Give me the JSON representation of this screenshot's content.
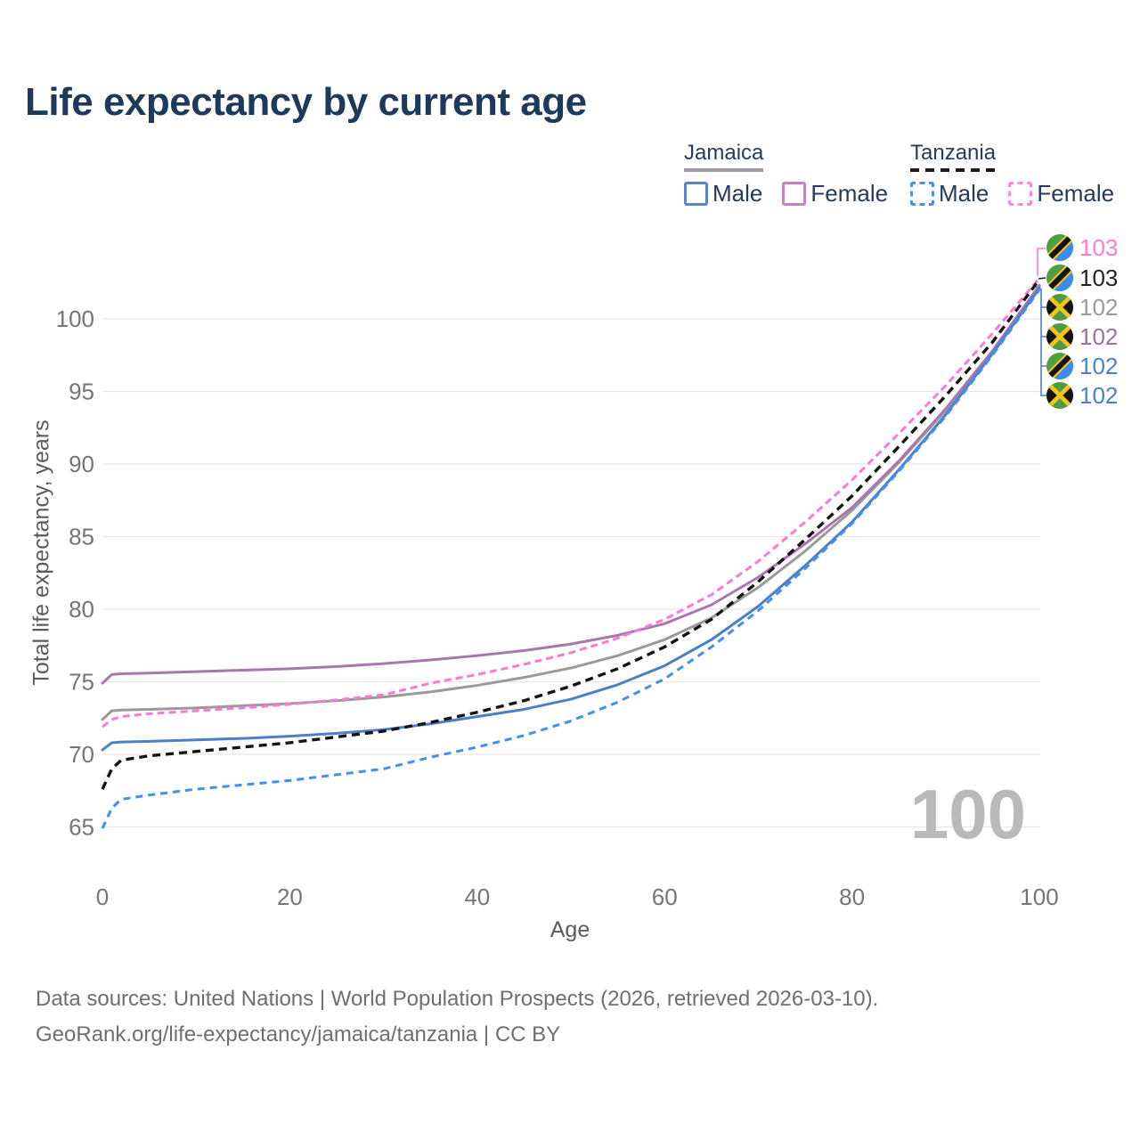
{
  "title": "Life expectancy by current age",
  "watermark": "100",
  "legend": {
    "groups": [
      {
        "country": "Jamaica",
        "line_color": "#9a9a9a",
        "line_dash": false,
        "items": [
          {
            "label": "Male",
            "color": "#5b84c5",
            "dash": false
          },
          {
            "label": "Female",
            "color": "#c383c1",
            "dash": false
          }
        ]
      },
      {
        "country": "Tanzania",
        "line_color": "#1a1a1a",
        "line_dash": true,
        "items": [
          {
            "label": "Male",
            "color": "#4b8df0",
            "dash": true
          },
          {
            "label": "Female",
            "color": "#ff86d9",
            "dash": true
          }
        ]
      }
    ]
  },
  "end_labels": [
    {
      "value": "103",
      "country": "Tanzania",
      "series": "Tanzania Female",
      "color": "#ff7bd1"
    },
    {
      "value": "103",
      "country": "Tanzania",
      "series": "Tanzania",
      "color": "#222222"
    },
    {
      "value": "102",
      "country": "Jamaica",
      "series": "Jamaica",
      "color": "#9a9a9a"
    },
    {
      "value": "102",
      "country": "Jamaica",
      "series": "Jamaica Female",
      "color": "#a06fa5"
    },
    {
      "value": "102",
      "country": "Tanzania",
      "series": "Tanzania Male",
      "color": "#4a7fd1"
    },
    {
      "value": "102",
      "country": "Jamaica",
      "series": "Jamaica Male",
      "color": "#4a7fd1"
    }
  ],
  "axes": {
    "x_label": "Age",
    "y_label": "Total life expectancy, years"
  },
  "chart_data": {
    "type": "line",
    "title": "Life expectancy by current age",
    "xlabel": "Age",
    "ylabel": "Total life expectancy, years",
    "xlim": [
      0,
      100
    ],
    "ylim": [
      63,
      104
    ],
    "grid": "horizontal",
    "legend_position": "top-right",
    "xticks": [
      0,
      20,
      40,
      60,
      80,
      100
    ],
    "yticks": [
      65,
      70,
      75,
      80,
      85,
      90,
      95,
      100
    ],
    "x": [
      0,
      1,
      2,
      5,
      10,
      15,
      20,
      25,
      30,
      35,
      40,
      45,
      50,
      55,
      60,
      65,
      70,
      75,
      80,
      85,
      90,
      95,
      100
    ],
    "series": [
      {
        "name": "Jamaica",
        "country": "Jamaica",
        "sex": "both",
        "color": "#9a9a9a",
        "dash": null,
        "width": 3,
        "values": [
          72.4,
          73.0,
          73.05,
          73.1,
          73.2,
          73.35,
          73.5,
          73.7,
          73.95,
          74.3,
          74.75,
          75.3,
          75.95,
          76.8,
          77.9,
          79.4,
          81.5,
          84.0,
          86.8,
          90.1,
          93.7,
          97.7,
          102.2
        ]
      },
      {
        "name": "Jamaica Female",
        "country": "Jamaica",
        "sex": "female",
        "color": "#a877ab",
        "dash": null,
        "width": 3,
        "values": [
          74.9,
          75.5,
          75.55,
          75.6,
          75.7,
          75.8,
          75.9,
          76.05,
          76.25,
          76.5,
          76.8,
          77.15,
          77.6,
          78.2,
          79.0,
          80.3,
          82.2,
          84.5,
          87.0,
          90.2,
          93.8,
          97.8,
          102.3
        ]
      },
      {
        "name": "Jamaica Male",
        "country": "Jamaica",
        "sex": "male",
        "color": "#4a80c8",
        "dash": null,
        "width": 3,
        "values": [
          70.3,
          70.8,
          70.85,
          70.9,
          71.0,
          71.1,
          71.25,
          71.45,
          71.7,
          72.1,
          72.6,
          73.1,
          73.8,
          74.8,
          76.1,
          77.9,
          80.2,
          83.0,
          86.0,
          89.6,
          93.4,
          97.6,
          102.1
        ]
      },
      {
        "name": "Tanzania Female",
        "country": "Tanzania",
        "sex": "female",
        "color": "#ff78d2",
        "dash": [
          8,
          5
        ],
        "width": 3,
        "values": [
          71.9,
          72.4,
          72.6,
          72.8,
          73.0,
          73.2,
          73.45,
          73.75,
          74.1,
          74.9,
          75.5,
          76.2,
          77.0,
          78.0,
          79.3,
          81.0,
          83.3,
          86.0,
          88.9,
          92.1,
          95.4,
          99.0,
          102.8
        ]
      },
      {
        "name": "Tanzania",
        "country": "Tanzania",
        "sex": "both",
        "color": "#141414",
        "dash": [
          9,
          6
        ],
        "width": 3.4,
        "values": [
          67.6,
          69.0,
          69.6,
          69.9,
          70.2,
          70.5,
          70.8,
          71.2,
          71.6,
          72.2,
          72.9,
          73.7,
          74.7,
          75.9,
          77.4,
          79.3,
          81.9,
          84.8,
          87.8,
          91.2,
          94.7,
          98.4,
          102.7
        ]
      },
      {
        "name": "Tanzania Male",
        "country": "Tanzania",
        "sex": "male",
        "color": "#4090f0",
        "dash": [
          8,
          6
        ],
        "width": 3,
        "values": [
          64.9,
          66.3,
          66.9,
          67.2,
          67.6,
          67.9,
          68.2,
          68.6,
          69.0,
          69.8,
          70.5,
          71.3,
          72.3,
          73.6,
          75.2,
          77.4,
          79.9,
          82.8,
          85.9,
          89.5,
          93.3,
          97.5,
          102.0
        ]
      }
    ]
  },
  "footer": {
    "line1": "Data sources: United Nations | World Population Prospects (2026, retrieved 2026-03-10).",
    "line2": "GeoRank.org/life-expectancy/jamaica/tanzania | CC BY"
  }
}
